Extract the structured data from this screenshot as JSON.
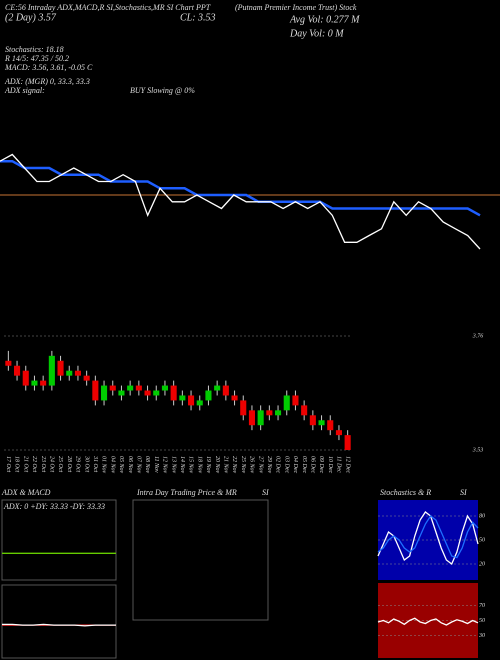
{
  "header": {
    "line1": "CE:56 Intraday ADX,MACD,R SI,Stochastics,MR SI Chart PPT",
    "line2": "(Putnam Premier Income Trust) Stock",
    "day2": "(2 Day) 3.57",
    "close": "CL: 3.53",
    "avgvol": "Avg Vol: 0.277 M",
    "dayvol": "Day Vol: 0 M",
    "stoch": "Stochastics: 18.18",
    "rsi": "R 14/5: 47.35 / 50.2",
    "macd": "MACD: 3.56, 3.61, -0.05 C",
    "adx": "ADX: (MGR) 0, 33.3, 33.3",
    "adxsignal": "ADX signal:",
    "signal": "BUY Slowing @ 0%"
  },
  "chart_data": [
    {
      "type": "line",
      "ylim": [
        3.45,
        3.85
      ],
      "level": 3.65,
      "level_color": "#c87533",
      "series": [
        {
          "color": "#1e5eff",
          "values": [
            3.7,
            3.7,
            3.69,
            3.69,
            3.69,
            3.68,
            3.68,
            3.68,
            3.68,
            3.67,
            3.67,
            3.67,
            3.67,
            3.66,
            3.66,
            3.66,
            3.65,
            3.65,
            3.65,
            3.65,
            3.65,
            3.64,
            3.64,
            3.64,
            3.64,
            3.64,
            3.64,
            3.63,
            3.63,
            3.63,
            3.63,
            3.63,
            3.63,
            3.63,
            3.63,
            3.63,
            3.63,
            3.63,
            3.63,
            3.62
          ]
        },
        {
          "color": "#ffffff",
          "values": [
            3.7,
            3.71,
            3.69,
            3.67,
            3.67,
            3.68,
            3.69,
            3.68,
            3.67,
            3.67,
            3.68,
            3.67,
            3.62,
            3.66,
            3.64,
            3.64,
            3.65,
            3.64,
            3.63,
            3.65,
            3.64,
            3.64,
            3.64,
            3.63,
            3.64,
            3.63,
            3.64,
            3.62,
            3.58,
            3.58,
            3.59,
            3.6,
            3.64,
            3.62,
            3.64,
            3.63,
            3.61,
            3.6,
            3.59,
            3.57
          ]
        }
      ]
    },
    {
      "type": "candlestick",
      "ylim": [
        3.53,
        3.76
      ],
      "yticks": [
        3.76,
        3.53
      ],
      "up_color": "#00cc00",
      "down_color": "#ee0000",
      "categories": [
        "17 Oct",
        "18 Oct",
        "21 Oct",
        "22 Oct",
        "23 Oct",
        "24 Oct",
        "25 Oct",
        "28 Oct",
        "29 Oct",
        "30 Oct",
        "31 Oct",
        "01 Nov",
        "04 Nov",
        "05 Nov",
        "06 Nov",
        "07 Nov",
        "08 Nov",
        "11 Nov",
        "12 Nov",
        "13 Nov",
        "14 Nov",
        "15 Nov",
        "18 Nov",
        "19 Nov",
        "20 Nov",
        "21 Nov",
        "22 Nov",
        "25 Nov",
        "26 Nov",
        "27 Nov",
        "29 Nov",
        "02 Dec",
        "03 Dec",
        "04 Dec",
        "05 Dec",
        "06 Dec",
        "09 Dec",
        "10 Dec",
        "11 Dec",
        "12 Dec"
      ],
      "open": [
        3.71,
        3.7,
        3.69,
        3.66,
        3.67,
        3.66,
        3.71,
        3.68,
        3.69,
        3.68,
        3.67,
        3.63,
        3.66,
        3.64,
        3.65,
        3.66,
        3.65,
        3.64,
        3.65,
        3.66,
        3.63,
        3.64,
        3.62,
        3.63,
        3.65,
        3.66,
        3.64,
        3.63,
        3.61,
        3.58,
        3.61,
        3.6,
        3.61,
        3.64,
        3.62,
        3.6,
        3.58,
        3.59,
        3.57,
        3.56
      ],
      "high": [
        3.73,
        3.71,
        3.7,
        3.68,
        3.68,
        3.73,
        3.72,
        3.7,
        3.7,
        3.69,
        3.68,
        3.67,
        3.67,
        3.66,
        3.67,
        3.67,
        3.66,
        3.66,
        3.67,
        3.67,
        3.65,
        3.65,
        3.64,
        3.66,
        3.67,
        3.67,
        3.65,
        3.64,
        3.62,
        3.62,
        3.62,
        3.62,
        3.65,
        3.65,
        3.63,
        3.61,
        3.6,
        3.6,
        3.58,
        3.57
      ],
      "low": [
        3.69,
        3.67,
        3.65,
        3.65,
        3.65,
        3.65,
        3.67,
        3.67,
        3.67,
        3.66,
        3.62,
        3.62,
        3.64,
        3.63,
        3.64,
        3.64,
        3.63,
        3.63,
        3.64,
        3.62,
        3.62,
        3.61,
        3.61,
        3.62,
        3.64,
        3.63,
        3.62,
        3.59,
        3.57,
        3.57,
        3.59,
        3.59,
        3.6,
        3.61,
        3.59,
        3.57,
        3.57,
        3.56,
        3.55,
        3.53
      ],
      "close": [
        3.7,
        3.68,
        3.66,
        3.67,
        3.66,
        3.72,
        3.68,
        3.69,
        3.68,
        3.67,
        3.63,
        3.66,
        3.65,
        3.65,
        3.66,
        3.65,
        3.64,
        3.65,
        3.66,
        3.63,
        3.64,
        3.62,
        3.63,
        3.65,
        3.66,
        3.64,
        3.63,
        3.6,
        3.58,
        3.61,
        3.6,
        3.61,
        3.64,
        3.62,
        3.6,
        3.58,
        3.59,
        3.57,
        3.56,
        3.53
      ]
    },
    {
      "type": "line",
      "title": "ADX & MACD",
      "subtitle": "ADX: 0  +DY: 33.33  -DY: 33.33",
      "ylim": [
        0,
        100
      ],
      "series": [
        {
          "color": "#66cc00",
          "values": [
            33.33,
            33.33,
            33.33,
            33.33,
            33.33,
            33.33,
            33.33,
            33.33,
            33.33,
            33.33,
            33.33,
            33.33
          ]
        }
      ]
    },
    {
      "type": "line",
      "ylim": [
        -0.5,
        0.5
      ],
      "series": [
        {
          "color": "#ff3333",
          "values": [
            -0.05,
            -0.05,
            -0.05,
            -0.05,
            -0.05,
            -0.05,
            -0.05,
            -0.05,
            -0.05,
            -0.05,
            -0.05,
            -0.05
          ]
        },
        {
          "color": "#ffffff",
          "values": [
            -0.04,
            -0.04,
            -0.05,
            -0.05,
            -0.04,
            -0.05,
            -0.05,
            -0.05,
            -0.06,
            -0.05,
            -0.05,
            -0.05
          ]
        }
      ]
    },
    {
      "type": "line",
      "title": "Intra Day Trading Price & MR",
      "subtitle": "SI",
      "ylim": [
        0,
        1
      ],
      "series": []
    },
    {
      "type": "line",
      "title": "Stochastics & R",
      "subtitle": "SI",
      "ylim": [
        0,
        100
      ],
      "yticks": [
        20,
        50,
        80
      ],
      "background": "#0000aa",
      "series": [
        {
          "color": "#ffffff",
          "values": [
            30,
            45,
            60,
            55,
            40,
            25,
            30,
            55,
            75,
            85,
            80,
            60,
            40,
            25,
            20,
            35,
            60,
            80,
            70,
            45
          ]
        },
        {
          "color": "#1e6eff",
          "values": [
            35,
            40,
            50,
            55,
            50,
            40,
            35,
            40,
            55,
            70,
            80,
            75,
            60,
            45,
            30,
            28,
            40,
            60,
            72,
            65
          ]
        }
      ]
    },
    {
      "type": "line",
      "ylim": [
        0,
        100
      ],
      "yticks": [
        30,
        50,
        70
      ],
      "background": "#990000",
      "series": [
        {
          "color": "#ffffff",
          "values": [
            48,
            50,
            47,
            52,
            49,
            45,
            50,
            53,
            48,
            46,
            50,
            52,
            47,
            44,
            48,
            51,
            49,
            46,
            50,
            47
          ]
        }
      ]
    }
  ]
}
